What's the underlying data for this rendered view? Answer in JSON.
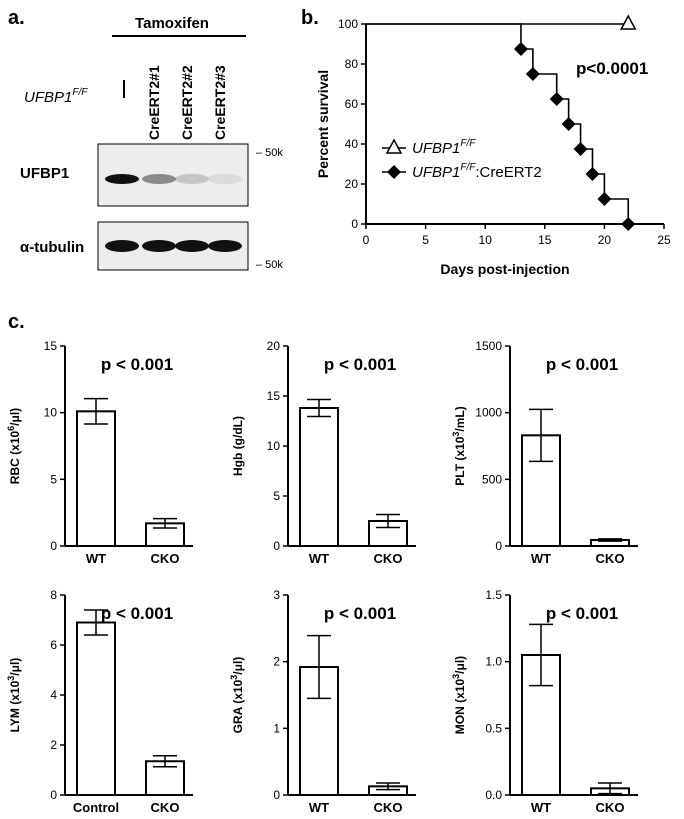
{
  "panels": {
    "a": {
      "label": "a.",
      "treatment_header": "Tamoxifen",
      "genotype_label": "UFBP1",
      "genotype_sup": "F/F",
      "lanes": [
        "CreERT2#1",
        "CreERT2#2",
        "CreERT2#3"
      ],
      "blots": [
        {
          "label": "UFBP1",
          "marker": "50k",
          "band_intensity": [
            1.0,
            0.45,
            0.18,
            0.08
          ]
        },
        {
          "label": "α-tubulin",
          "marker": "50k",
          "band_intensity": [
            1.0,
            1.0,
            1.0,
            1.0
          ]
        }
      ]
    },
    "b": {
      "label": "b."
    },
    "c": {
      "label": "c."
    }
  },
  "chart_data": [
    {
      "type": "line",
      "panel": "b",
      "title": "",
      "xlabel": "Days post-injection",
      "ylabel": "Percent survival",
      "xlim": [
        0,
        25
      ],
      "ylim": [
        0,
        100
      ],
      "xticks": [
        0,
        5,
        10,
        15,
        20,
        25
      ],
      "yticks": [
        0,
        20,
        40,
        60,
        80,
        100
      ],
      "annotation": "p<0.0001",
      "series": [
        {
          "name": "UFBP1",
          "name_sup": "F/F",
          "name_suffix": "",
          "marker": "open-triangle",
          "color": "#000000",
          "x": [
            0,
            22
          ],
          "y": [
            100,
            100
          ]
        },
        {
          "name": "UFBP1",
          "name_sup": "F/F",
          "name_suffix": ":CreERT2",
          "marker": "filled-diamond",
          "color": "#000000",
          "x": [
            0,
            13,
            14,
            16,
            17,
            18,
            19,
            20,
            22
          ],
          "y": [
            100,
            87.5,
            75,
            62.5,
            50,
            37.5,
            25,
            12.5,
            0
          ]
        }
      ],
      "legend_position": "center-left"
    },
    {
      "type": "bar",
      "panel": "c",
      "ylabel": "RBC (x10",
      "ylabel_sup": "6",
      "ylabel_tail": "/μl)",
      "categories": [
        "WT",
        "CKO"
      ],
      "values": [
        10.1,
        1.7
      ],
      "errors": [
        0.95,
        0.35
      ],
      "ylim": [
        0,
        15
      ],
      "yticks": [
        0,
        5,
        10,
        15
      ],
      "annotation": "p < 0.001"
    },
    {
      "type": "bar",
      "panel": "c",
      "ylabel": "Hgb (g/dL)",
      "ylabel_sup": "",
      "ylabel_tail": "",
      "categories": [
        "WT",
        "CKO"
      ],
      "values": [
        13.8,
        2.5
      ],
      "errors": [
        0.85,
        0.65
      ],
      "ylim": [
        0,
        20
      ],
      "yticks": [
        0,
        5,
        10,
        15,
        20
      ],
      "annotation": "p < 0.001"
    },
    {
      "type": "bar",
      "panel": "c",
      "ylabel": "PLT (x10",
      "ylabel_sup": "3",
      "ylabel_tail": "/mL)",
      "categories": [
        "WT",
        "CKO"
      ],
      "values": [
        830,
        45
      ],
      "errors": [
        195,
        8
      ],
      "ylim": [
        0,
        1500
      ],
      "yticks": [
        0,
        500,
        1000,
        1500
      ],
      "annotation": "p < 0.001"
    },
    {
      "type": "bar",
      "panel": "c",
      "ylabel": "LYM (x10",
      "ylabel_sup": "3",
      "ylabel_tail": "/μl)",
      "categories": [
        "Control",
        "CKO"
      ],
      "values": [
        6.9,
        1.35
      ],
      "errors": [
        0.5,
        0.22
      ],
      "ylim": [
        0,
        8
      ],
      "yticks": [
        0,
        2,
        4,
        6,
        8
      ],
      "annotation": "p < 0.001"
    },
    {
      "type": "bar",
      "panel": "c",
      "ylabel": "GRA (x10",
      "ylabel_sup": "3",
      "ylabel_tail": "/μl)",
      "categories": [
        "WT",
        "CKO"
      ],
      "values": [
        1.92,
        0.13
      ],
      "errors": [
        0.47,
        0.05
      ],
      "ylim": [
        0,
        3
      ],
      "yticks": [
        0,
        1,
        2,
        3
      ],
      "annotation": "p < 0.001"
    },
    {
      "type": "bar",
      "panel": "c",
      "ylabel": "MON (x10",
      "ylabel_sup": "3",
      "ylabel_tail": "/μl)",
      "categories": [
        "WT",
        "CKO"
      ],
      "values": [
        1.05,
        0.05
      ],
      "errors": [
        0.23,
        0.04
      ],
      "ylim": [
        0,
        1.5
      ],
      "yticks": [
        0,
        0.5,
        1.0,
        1.5
      ],
      "ytick_labels": [
        "0.0",
        "0.5",
        "1.0",
        "1.5"
      ],
      "annotation": "p < 0.001"
    }
  ]
}
